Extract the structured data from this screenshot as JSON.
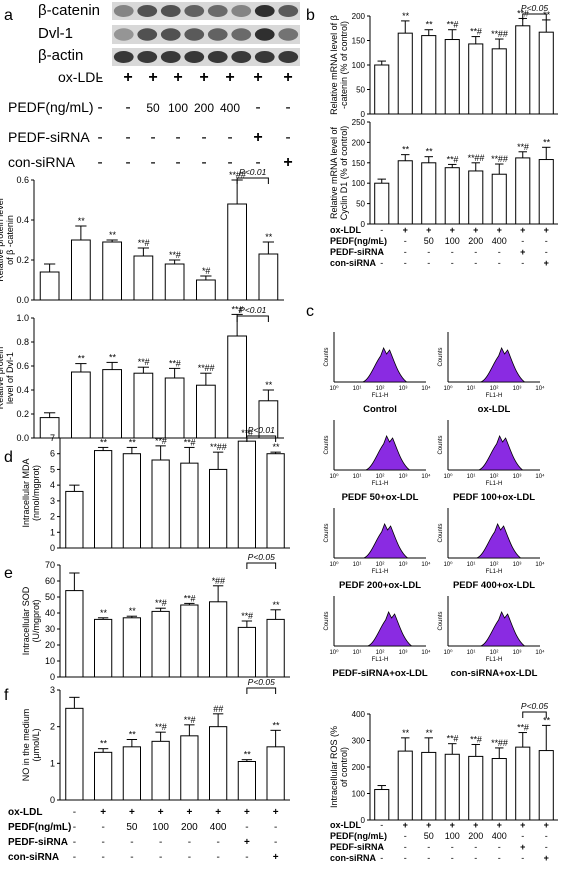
{
  "panels": {
    "a": "a",
    "b": "b",
    "c": "c",
    "d": "d",
    "e": "e",
    "f": "f"
  },
  "blot": {
    "bands": [
      "β-catenin",
      "Dvl-1",
      "β-actin"
    ],
    "rows": [
      {
        "label": "ox-LDL",
        "values": [
          "-",
          "+",
          "+",
          "+",
          "+",
          "+",
          "+",
          "+"
        ]
      },
      {
        "label": "PEDF(ng/mL)",
        "values": [
          "-",
          "-",
          "50",
          "100",
          "200",
          "400",
          "-",
          "-"
        ]
      },
      {
        "label": "PEDF-siRNA",
        "values": [
          "-",
          "-",
          "-",
          "-",
          "-",
          "-",
          "+",
          "-"
        ]
      },
      {
        "label": "con-siRNA",
        "values": [
          "-",
          "-",
          "-",
          "-",
          "-",
          "-",
          "-",
          "+"
        ]
      }
    ]
  },
  "treatment_rows": [
    {
      "label": "ox-LDL",
      "values": [
        "-",
        "+",
        "+",
        "+",
        "+",
        "+",
        "+",
        "+"
      ]
    },
    {
      "label": "PEDF(ng/mL)",
      "values": [
        "-",
        "-",
        "50",
        "100",
        "200",
        "400",
        "-",
        "-"
      ]
    },
    {
      "label": "PEDF-siRNA",
      "values": [
        "-",
        "-",
        "-",
        "-",
        "-",
        "-",
        "+",
        "-"
      ]
    },
    {
      "label": "con-siRNA",
      "values": [
        "-",
        "-",
        "-",
        "-",
        "-",
        "-",
        "-",
        "+"
      ]
    }
  ],
  "flow": {
    "ylabel": "Counts",
    "xlabel": "FL1-H",
    "xticks": [
      "10⁰",
      "10¹",
      "10²",
      "10³",
      "10⁴"
    ],
    "fill_color": "#8a2be2",
    "panels": [
      "Control",
      "ox-LDL",
      "PEDF 50+ox-LDL",
      "PEDF 100+ox-LDL",
      "PEDF 200+ox-LDL",
      "PEDF 400+ox-LDL",
      "PEDF-siRNA+ox-LDL",
      "con-siRNA+ox-LDL"
    ]
  },
  "chart_data": [
    {
      "id": "a1",
      "type": "bar",
      "ylabel": "Relative protein level of β -catenin",
      "ylim": [
        0,
        0.6
      ],
      "yticks": [
        0.0,
        0.2,
        0.4,
        0.6
      ],
      "values": [
        0.14,
        0.3,
        0.29,
        0.22,
        0.18,
        0.1,
        0.48,
        0.23
      ],
      "errors": [
        0.04,
        0.07,
        0.01,
        0.04,
        0.02,
        0.02,
        0.12,
        0.06
      ],
      "annotations": [
        "",
        "**",
        "**",
        "**#",
        "**#",
        "*#",
        "**##",
        "**"
      ],
      "bracket": {
        "from": 6,
        "to": 7,
        "label": "P<0.01"
      }
    },
    {
      "id": "a2",
      "type": "bar",
      "ylabel": "Relative protein level of Dvl-1",
      "ylim": [
        0,
        1.0
      ],
      "yticks": [
        0.0,
        0.2,
        0.4,
        0.6,
        0.8,
        1.0
      ],
      "values": [
        0.17,
        0.55,
        0.57,
        0.54,
        0.5,
        0.44,
        0.85,
        0.31
      ],
      "errors": [
        0.04,
        0.07,
        0.06,
        0.05,
        0.08,
        0.1,
        0.18,
        0.09
      ],
      "annotations": [
        "",
        "**",
        "**",
        "**#",
        "**#",
        "**##",
        "**#",
        "**"
      ],
      "bracket": {
        "from": 6,
        "to": 7,
        "label": "P<0.01"
      }
    },
    {
      "id": "b1",
      "type": "bar",
      "ylabel": "Relative mRNA level of β -catenin (% of control)",
      "ylim": [
        0,
        200
      ],
      "yticks": [
        0,
        50,
        100,
        150,
        200
      ],
      "values": [
        100,
        165,
        160,
        152,
        143,
        133,
        180,
        167
      ],
      "errors": [
        8,
        25,
        12,
        20,
        15,
        20,
        15,
        25
      ],
      "annotations": [
        "",
        "**",
        "**",
        "**#",
        "**#",
        "**##",
        "**#",
        "**"
      ],
      "bracket": {
        "from": 6,
        "to": 7,
        "label": "P<0.05"
      }
    },
    {
      "id": "b2",
      "type": "bar",
      "ylabel": "Relative mRNA level of Cyclin D1 (% of control)",
      "ylim": [
        0,
        250
      ],
      "yticks": [
        0,
        50,
        100,
        150,
        200,
        250
      ],
      "values": [
        100,
        155,
        150,
        138,
        130,
        122,
        162,
        158
      ],
      "errors": [
        10,
        15,
        15,
        8,
        20,
        25,
        15,
        30
      ],
      "annotations": [
        "",
        "**",
        "**",
        "**#",
        "**##",
        "**##",
        "**#",
        "**"
      ]
    },
    {
      "id": "d",
      "type": "bar",
      "ylabel": "Intracellular MDA (nmol/mgprot)",
      "ylim": [
        0,
        7
      ],
      "yticks": [
        0,
        1,
        2,
        3,
        4,
        5,
        6,
        7
      ],
      "values": [
        3.6,
        6.2,
        6.0,
        5.6,
        5.4,
        5.0,
        6.8,
        6.0
      ],
      "errors": [
        0.4,
        0.2,
        0.4,
        0.9,
        1.0,
        1.1,
        0.2,
        0.1
      ],
      "annotations": [
        "",
        "**",
        "**",
        "**#",
        "**#",
        "**##",
        "**#",
        "**"
      ],
      "bracket": {
        "from": 6,
        "to": 7,
        "label": "P<0.01"
      }
    },
    {
      "id": "e",
      "type": "bar",
      "ylabel": "Intracellular SOD (U/mgprot)",
      "ylim": [
        0,
        70
      ],
      "yticks": [
        0,
        10,
        20,
        30,
        40,
        50,
        60,
        70
      ],
      "values": [
        54,
        36,
        37,
        41,
        45,
        47,
        31,
        36
      ],
      "errors": [
        11,
        1,
        1,
        2,
        1,
        10,
        4,
        6
      ],
      "annotations": [
        "",
        "**",
        "**",
        "**#",
        "**#",
        "*##",
        "**#",
        "**"
      ],
      "bracket": {
        "from": 6,
        "to": 7,
        "label": "P<0.05"
      }
    },
    {
      "id": "f",
      "type": "bar",
      "ylabel": "NO in the medium (μmol/L)",
      "ylim": [
        0,
        3
      ],
      "yticks": [
        0,
        1,
        2,
        3
      ],
      "values": [
        2.5,
        1.3,
        1.45,
        1.6,
        1.75,
        2.0,
        1.05,
        1.45
      ],
      "errors": [
        0.3,
        0.1,
        0.2,
        0.25,
        0.3,
        0.35,
        0.05,
        0.45
      ],
      "annotations": [
        "",
        "**",
        "**",
        "**#",
        "**#",
        "##",
        "**",
        "**"
      ],
      "bracket": {
        "from": 6,
        "to": 7,
        "label": "P<0.05"
      }
    },
    {
      "id": "ros",
      "type": "bar",
      "ylabel": "Intracellular ROS (% of control)",
      "ylim": [
        0,
        400
      ],
      "yticks": [
        0,
        100,
        200,
        300,
        400
      ],
      "values": [
        115,
        260,
        255,
        248,
        240,
        232,
        275,
        262
      ],
      "errors": [
        15,
        50,
        55,
        40,
        45,
        40,
        55,
        95
      ],
      "annotations": [
        "",
        "**",
        "**",
        "**#",
        "**#",
        "**##",
        "**#",
        "**"
      ],
      "bracket": {
        "from": 6,
        "to": 7,
        "label": "P<0.05"
      }
    }
  ]
}
